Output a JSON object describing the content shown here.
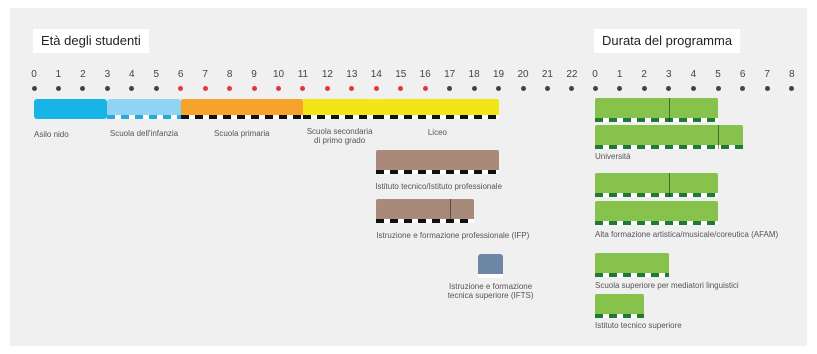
{
  "titles": {
    "age": "Età degli studenti",
    "duration": "Durata del programma"
  },
  "age_axis": {
    "ticks": [
      "0",
      "1",
      "2",
      "3",
      "4",
      "5",
      "6",
      "7",
      "8",
      "9",
      "10",
      "11",
      "12",
      "13",
      "14",
      "15",
      "16",
      "17",
      "18",
      "19",
      "20",
      "21",
      "22"
    ],
    "compulsory_ages": [
      6,
      7,
      8,
      9,
      10,
      11,
      12,
      13,
      14,
      15,
      16
    ],
    "dot_color": "#444444",
    "compulsory_dot_color": "#e53935"
  },
  "duration_axis": {
    "ticks": [
      "0",
      "1",
      "2",
      "3",
      "4",
      "5",
      "6",
      "7",
      "8"
    ],
    "dot_color": "#444444"
  },
  "colors": {
    "asilo": "#19b4e6",
    "infanzia": "#8fd5f3",
    "primaria": "#f7a32b",
    "secondaria": "#f2e617",
    "tecnico": "#a98a7a",
    "ifts": "#6e86a6",
    "terziaria": "#86c24c",
    "stripe": "#111111",
    "background": "#f0f0f0"
  },
  "age_programs": [
    {
      "id": "asilo",
      "label": "Asilo nido",
      "start": 0,
      "end": 3
    },
    {
      "id": "infanzia",
      "label": "Scuola dell'infanzia",
      "start": 3,
      "end": 6
    },
    {
      "id": "primaria",
      "label": "Scuola primaria",
      "start": 6,
      "end": 11
    },
    {
      "id": "secondaria-primo-grado",
      "label": "Scuola secondaria\ndi primo grado",
      "start": 11,
      "end": 14
    },
    {
      "id": "liceo",
      "label": "Liceo",
      "start": 14,
      "end": 19
    },
    {
      "id": "istituto-tecnico",
      "label": "Istituto tecnico/Istituto professionale",
      "start": 14,
      "end": 19
    },
    {
      "id": "ifp",
      "label": "Istruzione e formazione professionale (IFP)",
      "start": 14,
      "end": 18
    },
    {
      "id": "ifts",
      "label": "Istruzione e formazione\ntecnica superiore (IFTS)",
      "start": 18,
      "end": 19
    }
  ],
  "duration_programs": [
    {
      "id": "universita",
      "label": "Università",
      "rows": [
        {
          "years": 5,
          "divider": 3
        },
        {
          "years": 6,
          "divider": 5
        }
      ]
    },
    {
      "id": "afam",
      "label": "Alta formazione artistica/musicale/coreutica (AFAM)",
      "rows": [
        {
          "years": 5,
          "divider": 3
        },
        {
          "years": 5
        }
      ]
    },
    {
      "id": "mediatori",
      "label": "Scuola superiore per mediatori linguistici",
      "rows": [
        {
          "years": 3
        }
      ]
    },
    {
      "id": "its",
      "label": "Istituto tecnico superiore",
      "rows": [
        {
          "years": 2
        }
      ]
    }
  ]
}
